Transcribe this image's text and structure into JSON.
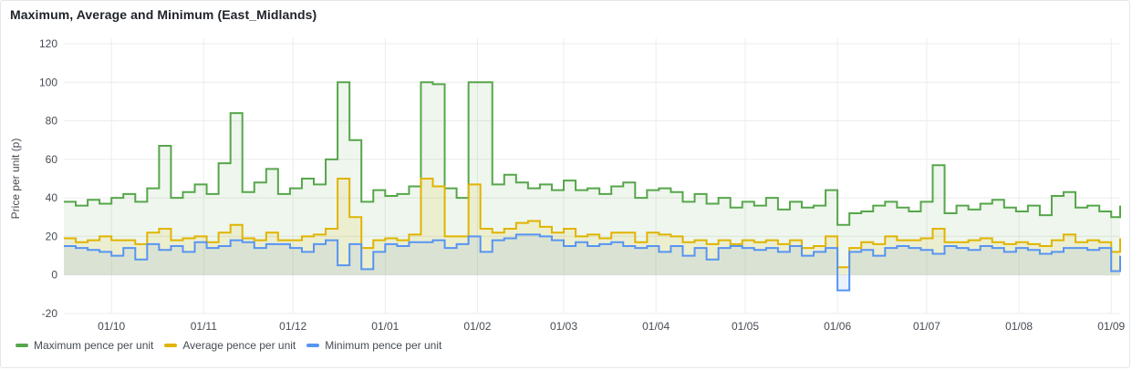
{
  "panel": {
    "title": "Maximum, Average and Minimum (East_Midlands)"
  },
  "chart_data": {
    "type": "line",
    "title": "Maximum, Average and Minimum (East_Midlands)",
    "ylabel": "Price per unit (p)",
    "xlabel": "",
    "ylim": [
      -20,
      120
    ],
    "yticks": [
      -20,
      0,
      20,
      40,
      60,
      80,
      100,
      120
    ],
    "xlim": [
      "2023-09-15",
      "2024-09-04"
    ],
    "xticks": [
      {
        "label": "01/10",
        "date": "2023-10-01"
      },
      {
        "label": "01/11",
        "date": "2023-11-01"
      },
      {
        "label": "01/12",
        "date": "2023-12-01"
      },
      {
        "label": "01/01",
        "date": "2024-01-01"
      },
      {
        "label": "01/02",
        "date": "2024-02-01"
      },
      {
        "label": "01/03",
        "date": "2024-03-01"
      },
      {
        "label": "01/04",
        "date": "2024-04-01"
      },
      {
        "label": "01/05",
        "date": "2024-05-01"
      },
      {
        "label": "01/06",
        "date": "2024-06-01"
      },
      {
        "label": "01/07",
        "date": "2024-07-01"
      },
      {
        "label": "01/08",
        "date": "2024-08-01"
      },
      {
        "label": "01/09",
        "date": "2024-09-01"
      }
    ],
    "grid": true,
    "legend_position": "bottom-left",
    "step": true,
    "x": [
      "2023-09-15",
      "2023-09-19",
      "2023-09-23",
      "2023-09-27",
      "2023-10-01",
      "2023-10-05",
      "2023-10-09",
      "2023-10-13",
      "2023-10-17",
      "2023-10-21",
      "2023-10-25",
      "2023-10-29",
      "2023-11-02",
      "2023-11-06",
      "2023-11-10",
      "2023-11-14",
      "2023-11-18",
      "2023-11-22",
      "2023-11-26",
      "2023-11-30",
      "2023-12-04",
      "2023-12-08",
      "2023-12-12",
      "2023-12-16",
      "2023-12-20",
      "2023-12-24",
      "2023-12-28",
      "2024-01-01",
      "2024-01-05",
      "2024-01-09",
      "2024-01-13",
      "2024-01-17",
      "2024-01-21",
      "2024-01-25",
      "2024-01-29",
      "2024-02-02",
      "2024-02-06",
      "2024-02-10",
      "2024-02-14",
      "2024-02-18",
      "2024-02-22",
      "2024-02-26",
      "2024-03-01",
      "2024-03-05",
      "2024-03-09",
      "2024-03-13",
      "2024-03-17",
      "2024-03-21",
      "2024-03-25",
      "2024-03-29",
      "2024-04-02",
      "2024-04-06",
      "2024-04-10",
      "2024-04-14",
      "2024-04-18",
      "2024-04-22",
      "2024-04-26",
      "2024-04-30",
      "2024-05-04",
      "2024-05-08",
      "2024-05-12",
      "2024-05-16",
      "2024-05-20",
      "2024-05-24",
      "2024-05-28",
      "2024-06-01",
      "2024-06-05",
      "2024-06-09",
      "2024-06-13",
      "2024-06-17",
      "2024-06-21",
      "2024-06-25",
      "2024-06-29",
      "2024-07-03",
      "2024-07-07",
      "2024-07-11",
      "2024-07-15",
      "2024-07-19",
      "2024-07-23",
      "2024-07-27",
      "2024-07-31",
      "2024-08-04",
      "2024-08-08",
      "2024-08-12",
      "2024-08-16",
      "2024-08-20",
      "2024-08-24",
      "2024-08-28",
      "2024-09-01",
      "2024-09-04"
    ],
    "series": [
      {
        "name": "Maximum pence per unit",
        "color": "#56a64b",
        "values": [
          38,
          36,
          39,
          37,
          40,
          42,
          38,
          45,
          67,
          40,
          43,
          47,
          42,
          58,
          84,
          43,
          48,
          55,
          42,
          45,
          50,
          47,
          60,
          100,
          70,
          38,
          44,
          41,
          42,
          46,
          100,
          99,
          45,
          40,
          100,
          100,
          47,
          52,
          48,
          45,
          47,
          44,
          49,
          44,
          45,
          42,
          46,
          48,
          40,
          44,
          45,
          43,
          38,
          42,
          37,
          40,
          35,
          38,
          36,
          40,
          34,
          38,
          35,
          36,
          44,
          26,
          32,
          33,
          36,
          38,
          35,
          33,
          38,
          57,
          32,
          36,
          34,
          37,
          39,
          35,
          33,
          36,
          31,
          41,
          43,
          35,
          36,
          33,
          30,
          36
        ]
      },
      {
        "name": "Average pence per unit",
        "color": "#e0b400",
        "values": [
          19,
          17,
          18,
          20,
          18,
          18,
          16,
          22,
          24,
          18,
          19,
          20,
          17,
          22,
          26,
          19,
          18,
          22,
          18,
          18,
          20,
          21,
          24,
          50,
          30,
          14,
          18,
          19,
          18,
          21,
          50,
          46,
          20,
          20,
          47,
          24,
          22,
          24,
          27,
          28,
          25,
          22,
          24,
          20,
          21,
          19,
          22,
          22,
          17,
          22,
          21,
          20,
          17,
          18,
          16,
          18,
          16,
          18,
          17,
          18,
          16,
          18,
          14,
          15,
          20,
          4,
          14,
          17,
          16,
          20,
          18,
          18,
          19,
          24,
          17,
          17,
          18,
          19,
          17,
          16,
          17,
          16,
          15,
          18,
          21,
          17,
          18,
          17,
          12,
          19
        ]
      },
      {
        "name": "Minimum pence per unit",
        "color": "#5794f2",
        "values": [
          15,
          14,
          13,
          12,
          10,
          14,
          8,
          16,
          13,
          15,
          12,
          17,
          14,
          15,
          18,
          17,
          14,
          16,
          16,
          14,
          12,
          16,
          18,
          5,
          16,
          3,
          12,
          16,
          15,
          17,
          17,
          18,
          14,
          16,
          20,
          12,
          18,
          19,
          21,
          21,
          20,
          18,
          15,
          17,
          15,
          16,
          17,
          15,
          14,
          15,
          12,
          15,
          10,
          14,
          8,
          14,
          15,
          14,
          13,
          14,
          12,
          15,
          10,
          12,
          14,
          -8,
          12,
          13,
          10,
          14,
          15,
          14,
          13,
          11,
          15,
          14,
          13,
          15,
          14,
          12,
          14,
          13,
          11,
          12,
          14,
          14,
          13,
          14,
          2,
          10
        ]
      }
    ]
  },
  "legend": [
    {
      "label": "Maximum pence per unit",
      "color": "#56a64b"
    },
    {
      "label": "Average pence per unit",
      "color": "#e0b400"
    },
    {
      "label": "Minimum pence per unit",
      "color": "#5794f2"
    }
  ]
}
